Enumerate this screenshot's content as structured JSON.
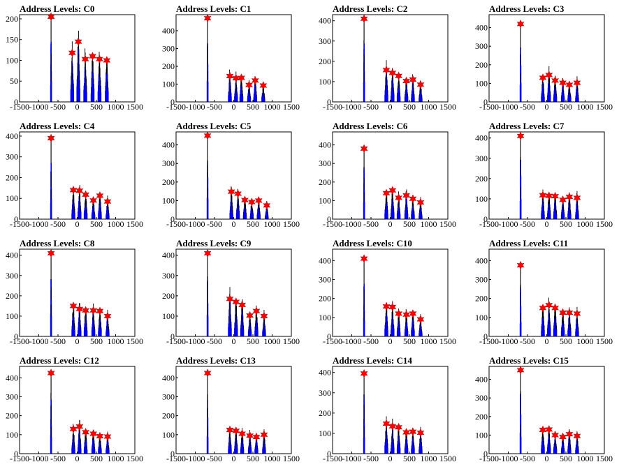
{
  "colors": {
    "histogram_dark": "#000000",
    "histogram": "#0000ff",
    "marker": "#ff0000",
    "marker_edge": "#cc0000"
  },
  "chart_data": [
    {
      "type": "bar",
      "title": "Address Levels: C0",
      "xlim": [
        -1500,
        1500
      ],
      "ylim": [
        0,
        210
      ],
      "yticks": [
        0,
        50,
        100,
        150,
        200
      ],
      "xticks": [
        -1500,
        -1000,
        -500,
        0,
        500,
        1000,
        1500
      ],
      "peaks": [
        {
          "x": -680,
          "y": 205
        },
        {
          "x": -130,
          "y": 118
        },
        {
          "x": 30,
          "y": 145
        },
        {
          "x": 210,
          "y": 103
        },
        {
          "x": 400,
          "y": 110
        },
        {
          "x": 580,
          "y": 103
        },
        {
          "x": 770,
          "y": 100
        }
      ]
    },
    {
      "type": "bar",
      "title": "Address Levels: C1",
      "xlim": [
        -1500,
        1500
      ],
      "ylim": [
        0,
        490
      ],
      "yticks": [
        0,
        100,
        200,
        300,
        400
      ],
      "xticks": [
        -1500,
        -1000,
        -500,
        0,
        500,
        1000,
        1500
      ],
      "peaks": [
        {
          "x": -680,
          "y": 470
        },
        {
          "x": -100,
          "y": 145
        },
        {
          "x": 60,
          "y": 133
        },
        {
          "x": 200,
          "y": 135
        },
        {
          "x": 400,
          "y": 95
        },
        {
          "x": 560,
          "y": 120
        },
        {
          "x": 770,
          "y": 92
        }
      ]
    },
    {
      "type": "bar",
      "title": "Address Levels: C2",
      "xlim": [
        -1500,
        1500
      ],
      "ylim": [
        0,
        430
      ],
      "yticks": [
        0,
        100,
        200,
        300,
        400
      ],
      "xticks": [
        -1500,
        -1000,
        -500,
        0,
        500,
        1000,
        1500
      ],
      "peaks": [
        {
          "x": -680,
          "y": 410
        },
        {
          "x": -100,
          "y": 157
        },
        {
          "x": 60,
          "y": 143
        },
        {
          "x": 220,
          "y": 128
        },
        {
          "x": 420,
          "y": 103
        },
        {
          "x": 590,
          "y": 110
        },
        {
          "x": 790,
          "y": 85
        }
      ]
    },
    {
      "type": "bar",
      "title": "Address Levels: C3",
      "xlim": [
        -1500,
        1500
      ],
      "ylim": [
        0,
        470
      ],
      "yticks": [
        0,
        100,
        200,
        300,
        400
      ],
      "xticks": [
        -1500,
        -1000,
        -500,
        0,
        500,
        1000,
        1500
      ],
      "peaks": [
        {
          "x": -680,
          "y": 420
        },
        {
          "x": -100,
          "y": 130
        },
        {
          "x": 60,
          "y": 145
        },
        {
          "x": 220,
          "y": 115
        },
        {
          "x": 420,
          "y": 103
        },
        {
          "x": 590,
          "y": 92
        },
        {
          "x": 790,
          "y": 103
        }
      ]
    },
    {
      "type": "bar",
      "title": "Address Levels: C4",
      "xlim": [
        -1500,
        1500
      ],
      "ylim": [
        0,
        420
      ],
      "yticks": [
        0,
        100,
        200,
        300,
        400
      ],
      "xticks": [
        -1500,
        -1000,
        -500,
        0,
        500,
        1000,
        1500
      ],
      "peaks": [
        {
          "x": -680,
          "y": 390
        },
        {
          "x": -100,
          "y": 140
        },
        {
          "x": 60,
          "y": 137
        },
        {
          "x": 220,
          "y": 118
        },
        {
          "x": 420,
          "y": 90
        },
        {
          "x": 590,
          "y": 113
        },
        {
          "x": 790,
          "y": 85
        }
      ]
    },
    {
      "type": "bar",
      "title": "Address Levels: C5",
      "xlim": [
        -1500,
        1500
      ],
      "ylim": [
        0,
        470
      ],
      "yticks": [
        0,
        100,
        200,
        300,
        400
      ],
      "xticks": [
        -1500,
        -1000,
        -500,
        0,
        500,
        1000,
        1500
      ],
      "peaks": [
        {
          "x": -680,
          "y": 450
        },
        {
          "x": -60,
          "y": 148
        },
        {
          "x": 110,
          "y": 137
        },
        {
          "x": 290,
          "y": 103
        },
        {
          "x": 470,
          "y": 92
        },
        {
          "x": 650,
          "y": 100
        },
        {
          "x": 860,
          "y": 74
        }
      ]
    },
    {
      "type": "bar",
      "title": "Address Levels: C6",
      "xlim": [
        -1500,
        1500
      ],
      "ylim": [
        0,
        470
      ],
      "yticks": [
        0,
        100,
        200,
        300,
        400
      ],
      "xticks": [
        -1500,
        -1000,
        -500,
        0,
        500,
        1000,
        1500
      ],
      "peaks": [
        {
          "x": -680,
          "y": 380
        },
        {
          "x": -100,
          "y": 140
        },
        {
          "x": 60,
          "y": 155
        },
        {
          "x": 220,
          "y": 115
        },
        {
          "x": 420,
          "y": 128
        },
        {
          "x": 590,
          "y": 110
        },
        {
          "x": 790,
          "y": 90
        }
      ]
    },
    {
      "type": "bar",
      "title": "Address Levels: C7",
      "xlim": [
        -1500,
        1500
      ],
      "ylim": [
        0,
        430
      ],
      "yticks": [
        0,
        100,
        200,
        300,
        400
      ],
      "xticks": [
        -1500,
        -1000,
        -500,
        0,
        500,
        1000,
        1500
      ],
      "peaks": [
        {
          "x": -680,
          "y": 410
        },
        {
          "x": -100,
          "y": 118
        },
        {
          "x": 60,
          "y": 115
        },
        {
          "x": 220,
          "y": 113
        },
        {
          "x": 420,
          "y": 95
        },
        {
          "x": 590,
          "y": 110
        },
        {
          "x": 790,
          "y": 105
        }
      ]
    },
    {
      "type": "bar",
      "title": "Address Levels: C8",
      "xlim": [
        -1500,
        1500
      ],
      "ylim": [
        0,
        430
      ],
      "yticks": [
        0,
        100,
        200,
        300,
        400
      ],
      "xticks": [
        -1500,
        -1000,
        -500,
        0,
        500,
        1000,
        1500
      ],
      "peaks": [
        {
          "x": -680,
          "y": 410
        },
        {
          "x": -100,
          "y": 150
        },
        {
          "x": 60,
          "y": 135
        },
        {
          "x": 220,
          "y": 128
        },
        {
          "x": 420,
          "y": 128
        },
        {
          "x": 590,
          "y": 125
        },
        {
          "x": 790,
          "y": 100
        }
      ]
    },
    {
      "type": "bar",
      "title": "Address Levels: C9",
      "xlim": [
        -1500,
        1500
      ],
      "ylim": [
        0,
        430
      ],
      "yticks": [
        0,
        100,
        200,
        300,
        400
      ],
      "xticks": [
        -1500,
        -1000,
        -500,
        0,
        500,
        1000,
        1500
      ],
      "peaks": [
        {
          "x": -680,
          "y": 410
        },
        {
          "x": -100,
          "y": 185
        },
        {
          "x": 60,
          "y": 170
        },
        {
          "x": 220,
          "y": 155
        },
        {
          "x": 420,
          "y": 103
        },
        {
          "x": 590,
          "y": 125
        },
        {
          "x": 790,
          "y": 100
        }
      ]
    },
    {
      "type": "bar",
      "title": "Address Levels: C10",
      "xlim": [
        -1500,
        1500
      ],
      "ylim": [
        0,
        460
      ],
      "yticks": [
        0,
        100,
        200,
        300,
        400
      ],
      "xticks": [
        -1500,
        -1000,
        -500,
        0,
        500,
        1000,
        1500
      ],
      "peaks": [
        {
          "x": -680,
          "y": 410
        },
        {
          "x": -100,
          "y": 158
        },
        {
          "x": 60,
          "y": 155
        },
        {
          "x": 220,
          "y": 120
        },
        {
          "x": 420,
          "y": 115
        },
        {
          "x": 590,
          "y": 120
        },
        {
          "x": 790,
          "y": 90
        }
      ]
    },
    {
      "type": "bar",
      "title": "Address Levels: C11",
      "xlim": [
        -1500,
        1500
      ],
      "ylim": [
        0,
        460
      ],
      "yticks": [
        0,
        100,
        200,
        300,
        400
      ],
      "xticks": [
        -1500,
        -1000,
        -500,
        0,
        500,
        1000,
        1500
      ],
      "peaks": [
        {
          "x": -680,
          "y": 375
        },
        {
          "x": -100,
          "y": 150
        },
        {
          "x": 60,
          "y": 165
        },
        {
          "x": 220,
          "y": 150
        },
        {
          "x": 420,
          "y": 125
        },
        {
          "x": 590,
          "y": 125
        },
        {
          "x": 790,
          "y": 120
        }
      ]
    },
    {
      "type": "bar",
      "title": "Address Levels: C12",
      "xlim": [
        -1500,
        1500
      ],
      "ylim": [
        0,
        460
      ],
      "yticks": [
        0,
        100,
        200,
        300,
        400
      ],
      "xticks": [
        -1500,
        -1000,
        -500,
        0,
        500,
        1000,
        1500
      ],
      "peaks": [
        {
          "x": -680,
          "y": 425
        },
        {
          "x": -100,
          "y": 130
        },
        {
          "x": 60,
          "y": 143
        },
        {
          "x": 220,
          "y": 113
        },
        {
          "x": 420,
          "y": 105
        },
        {
          "x": 590,
          "y": 92
        },
        {
          "x": 790,
          "y": 90
        }
      ]
    },
    {
      "type": "bar",
      "title": "Address Levels: C13",
      "xlim": [
        -1500,
        1500
      ],
      "ylim": [
        0,
        460
      ],
      "yticks": [
        0,
        100,
        200,
        300,
        400
      ],
      "xticks": [
        -1500,
        -1000,
        -500,
        0,
        500,
        1000,
        1500
      ],
      "peaks": [
        {
          "x": -680,
          "y": 425
        },
        {
          "x": -100,
          "y": 125
        },
        {
          "x": 60,
          "y": 120
        },
        {
          "x": 220,
          "y": 105
        },
        {
          "x": 420,
          "y": 95
        },
        {
          "x": 590,
          "y": 88
        },
        {
          "x": 790,
          "y": 100
        }
      ]
    },
    {
      "type": "bar",
      "title": "Address Levels: C14",
      "xlim": [
        -1500,
        1500
      ],
      "ylim": [
        0,
        430
      ],
      "yticks": [
        0,
        100,
        200,
        300,
        400
      ],
      "xticks": [
        -1500,
        -1000,
        -500,
        0,
        500,
        1000,
        1500
      ],
      "peaks": [
        {
          "x": -680,
          "y": 395
        },
        {
          "x": -100,
          "y": 148
        },
        {
          "x": 60,
          "y": 135
        },
        {
          "x": 220,
          "y": 130
        },
        {
          "x": 420,
          "y": 105
        },
        {
          "x": 590,
          "y": 108
        },
        {
          "x": 790,
          "y": 103
        }
      ]
    },
    {
      "type": "bar",
      "title": "Address Levels: C15",
      "xlim": [
        -1500,
        1500
      ],
      "ylim": [
        0,
        470
      ],
      "yticks": [
        0,
        100,
        200,
        300,
        400
      ],
      "xticks": [
        -1500,
        -1000,
        -500,
        0,
        500,
        1000,
        1500
      ],
      "peaks": [
        {
          "x": -680,
          "y": 450
        },
        {
          "x": -100,
          "y": 128
        },
        {
          "x": 60,
          "y": 130
        },
        {
          "x": 220,
          "y": 100
        },
        {
          "x": 420,
          "y": 90
        },
        {
          "x": 590,
          "y": 105
        },
        {
          "x": 790,
          "y": 95
        }
      ]
    }
  ]
}
